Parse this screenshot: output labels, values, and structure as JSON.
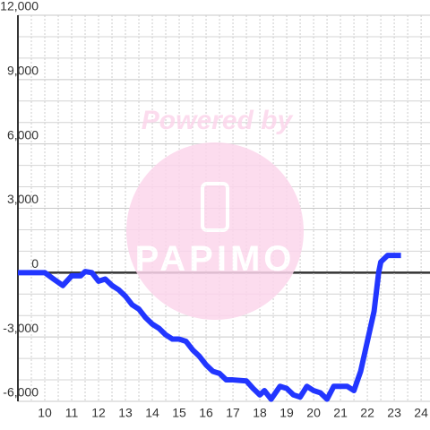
{
  "chart_data": {
    "type": "line",
    "watermark": {
      "top": "Powered by",
      "bottom": "PAPIMO"
    },
    "x": [
      9,
      10,
      10.33,
      10.67,
      11,
      11.33,
      11.5,
      11.75,
      12,
      12.25,
      12.5,
      12.75,
      13,
      13.25,
      13.5,
      13.75,
      14,
      14.25,
      14.5,
      14.75,
      15,
      15.25,
      15.5,
      15.75,
      16,
      16.25,
      16.5,
      16.75,
      17,
      17.5,
      17.75,
      18,
      18.17,
      18.42,
      18.75,
      19,
      19.25,
      19.5,
      19.75,
      20,
      20.25,
      20.5,
      20.75,
      21.25,
      21.5,
      21.75,
      22,
      22.25,
      22.42,
      22.5,
      22.75,
      23.25
    ],
    "series": [
      {
        "name": null,
        "color": "#2236ff",
        "values": [
          0,
          0,
          -300,
          -600,
          -150,
          -150,
          50,
          0,
          -400,
          -300,
          -600,
          -800,
          -1100,
          -1500,
          -1700,
          -2100,
          -2400,
          -2600,
          -2900,
          -3100,
          -3100,
          -3200,
          -3600,
          -3900,
          -4300,
          -4600,
          -4700,
          -5000,
          -5000,
          -5050,
          -5400,
          -5700,
          -5500,
          -5900,
          -5300,
          -5400,
          -5700,
          -5800,
          -5300,
          -5500,
          -5600,
          -5900,
          -5300,
          -5300,
          -5500,
          -4600,
          -3200,
          -1800,
          0,
          500,
          800,
          800
        ]
      }
    ],
    "xlim": [
      9,
      24.33
    ],
    "xticks": [
      10,
      11,
      12,
      13,
      14,
      15,
      16,
      17,
      18,
      19,
      20,
      21,
      22,
      23,
      24
    ],
    "x_minor_ticks": [
      9.5,
      10.5,
      11.5,
      12.5,
      13.5,
      14.5,
      15.5,
      16.5,
      17.5,
      18.5,
      19.5,
      20.5,
      21.5,
      22.5,
      23.5
    ],
    "ylim": [
      -6000,
      12000
    ],
    "yticks": [
      {
        "value": -6000,
        "label": "-6,000"
      },
      {
        "value": -3000,
        "label": "-3,000"
      },
      0,
      {
        "value": 3000,
        "label": "3,000"
      },
      {
        "value": 6000,
        "label": "6,000"
      },
      {
        "value": 9000,
        "label": "9,000"
      },
      {
        "value": 12000,
        "label": "12,000"
      }
    ],
    "y_minor_ticks": [
      -5000,
      -4000,
      -2000,
      -1000,
      1000,
      2000,
      4000,
      5000,
      7000,
      8000,
      10000,
      11000
    ],
    "grid": true
  }
}
